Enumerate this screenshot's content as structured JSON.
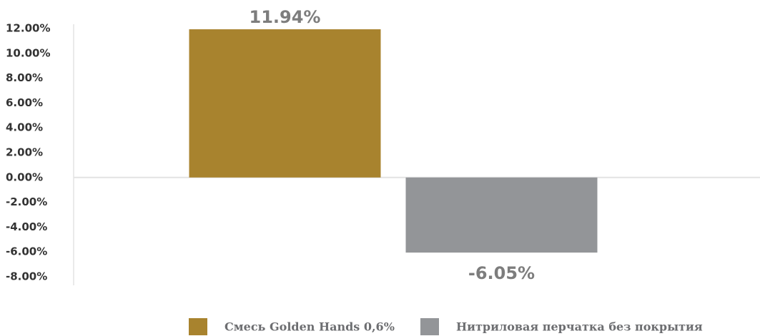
{
  "chart_data": {
    "type": "bar",
    "categories": [
      null
    ],
    "series": [
      {
        "name": "Смесь Golden Hands 0,6%",
        "color": "#a8832e",
        "values": [
          11.94
        ],
        "value_labels": [
          "11.94%"
        ]
      },
      {
        "name": "Нитриловая перчатка без покрытия",
        "color": "#939598",
        "values": [
          -6.05
        ],
        "value_labels": [
          "-6.05%"
        ]
      }
    ],
    "ylim": [
      -8,
      12
    ],
    "yticks": [
      {
        "value": -8,
        "label": "-8.00%"
      },
      {
        "value": -6,
        "label": "-6.00%"
      },
      {
        "value": -4,
        "label": "-4.00%"
      },
      {
        "value": -2,
        "label": "-2.00%"
      },
      {
        "value": 0,
        "label": "0.00%"
      },
      {
        "value": 2,
        "label": "2.00%"
      },
      {
        "value": 4,
        "label": "4.00%"
      },
      {
        "value": 6,
        "label": "6.00%"
      },
      {
        "value": 8,
        "label": "8.00%"
      },
      {
        "value": 10,
        "label": "10.00%"
      },
      {
        "value": 12,
        "label": "12.00%"
      }
    ],
    "grid": false,
    "legend": "bottom"
  }
}
